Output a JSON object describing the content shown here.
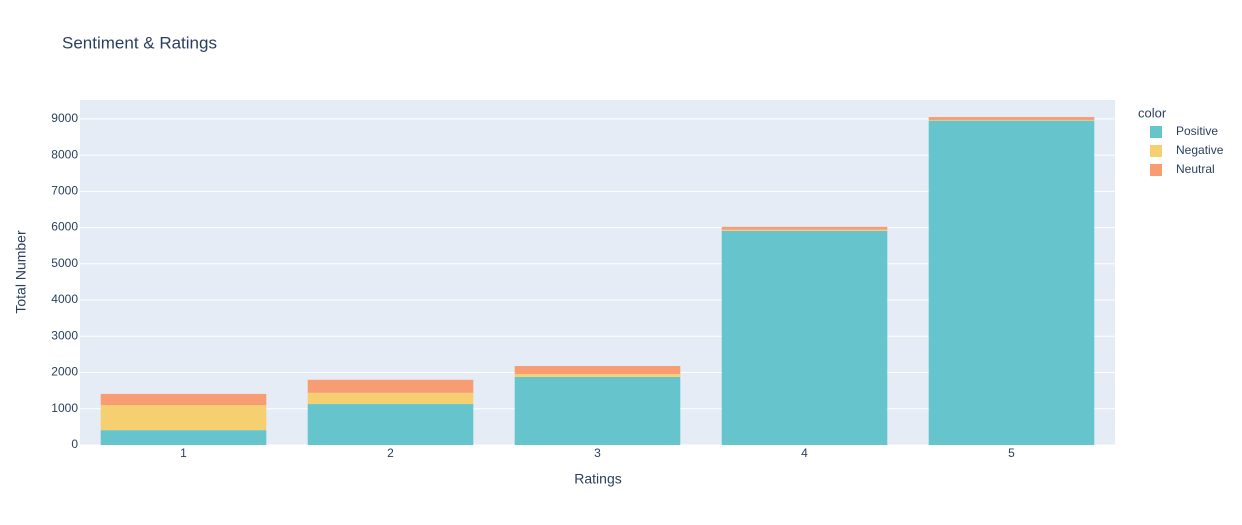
{
  "chart_data": {
    "type": "stacked_bar",
    "title": "Sentiment & Ratings",
    "x_label": "Ratings",
    "y_label": "Total Number",
    "legend_title": "color",
    "categories": [
      "1",
      "2",
      "3",
      "4",
      "5"
    ],
    "series": [
      {
        "name": "Positive",
        "color": "#66C5CC",
        "values": [
          410,
          1130,
          1880,
          5910,
          8950
        ]
      },
      {
        "name": "Negative",
        "color": "#F6CF71",
        "values": [
          690,
          310,
          80,
          30,
          20
        ]
      },
      {
        "name": "Neutral",
        "color": "#F89C74",
        "values": [
          310,
          360,
          220,
          80,
          80
        ]
      }
    ],
    "ylim": [
      0,
      9520
    ],
    "yticks": [
      0,
      1000,
      2000,
      3000,
      4000,
      5000,
      6000,
      7000,
      8000,
      9000
    ],
    "grid": true,
    "legend": "right"
  }
}
